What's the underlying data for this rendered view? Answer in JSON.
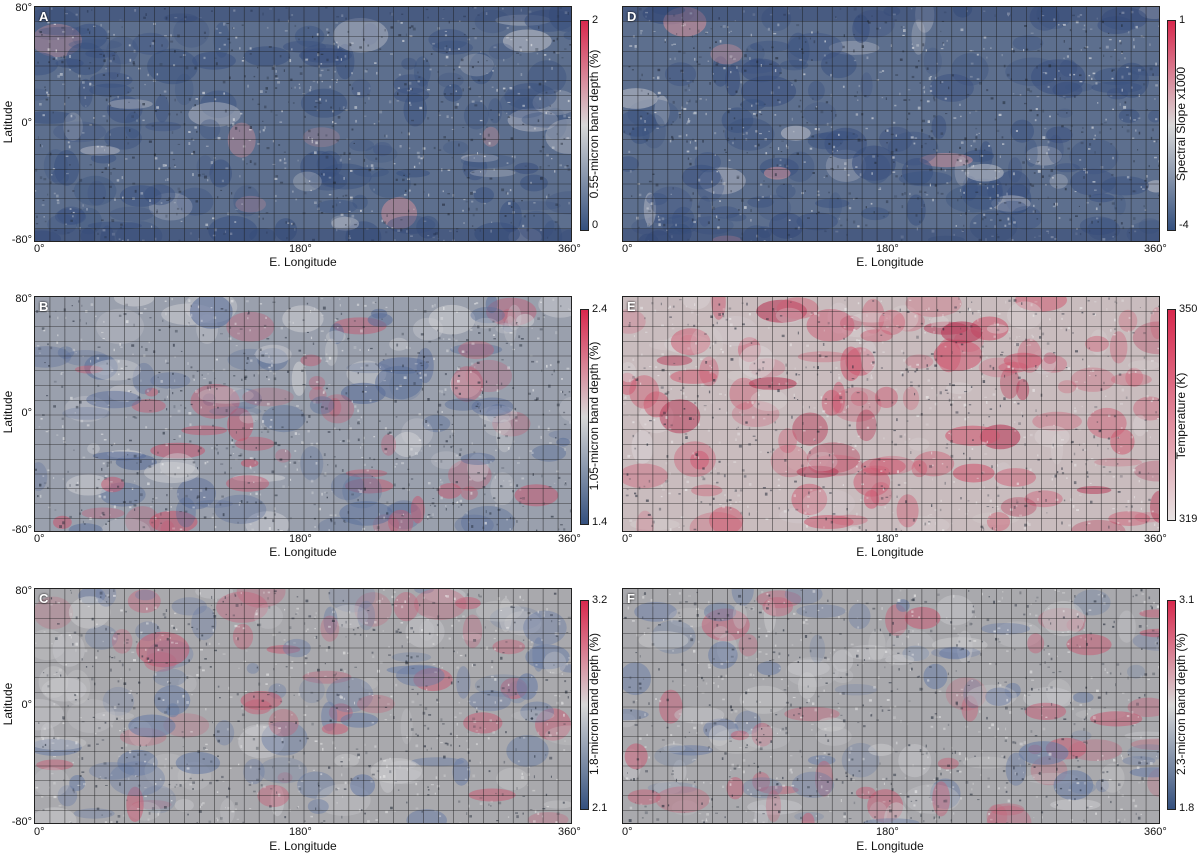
{
  "axis": {
    "x_label": "E. Longitude",
    "y_label": "Latitude",
    "lon_ticks": [
      "0°",
      "180°",
      "360°"
    ],
    "lat_ticks": [
      "80°",
      "0°",
      "-80°"
    ]
  },
  "colors": {
    "low": "#34507e",
    "mid": "#d8d8d8",
    "high": "#d8284d",
    "grid": "#1a1a1a"
  },
  "panels": [
    {
      "id": "A",
      "letter": "A",
      "colorbar_label": "0.55-micron band depth (%)",
      "cbar_max": "2",
      "cbar_min": "0",
      "tone": "blue"
    },
    {
      "id": "B",
      "letter": "B",
      "colorbar_label": "1.05-micron band depth (%)",
      "cbar_max": "2.4",
      "cbar_min": "1.4",
      "tone": "mixed"
    },
    {
      "id": "C",
      "letter": "C",
      "colorbar_label": "1.8-micron band depth (%)",
      "cbar_max": "3.2",
      "cbar_min": "2.1",
      "tone": "gray"
    },
    {
      "id": "D",
      "letter": "D",
      "colorbar_label": "Spectral Slope x1000",
      "cbar_max": "1",
      "cbar_min": "-4",
      "tone": "blue"
    },
    {
      "id": "E",
      "letter": "E",
      "colorbar_label": "Temperature (K)",
      "cbar_max": "350",
      "cbar_min": "319",
      "tone": "red"
    },
    {
      "id": "F",
      "letter": "F",
      "colorbar_label": "2.3-micron band depth (%)",
      "cbar_max": "3.1",
      "cbar_min": "1.8",
      "tone": "gray"
    }
  ]
}
